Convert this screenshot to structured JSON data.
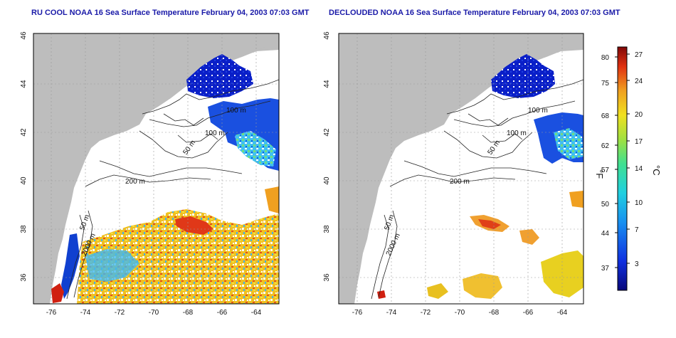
{
  "left_panel": {
    "title": "RU COOL NOAA 16 Sea Surface Temperature February 04, 2003 07:03 GMT",
    "contours": [
      "100 m",
      "100 m",
      "50 m",
      "200 m",
      "50 m",
      "2000 m"
    ]
  },
  "right_panel": {
    "title": "DECLOUDED NOAA 16 Sea Surface Temperature February 04, 2003 07:03 GMT",
    "contours": [
      "100 m",
      "100 m",
      "50 m",
      "200 m",
      "50 m",
      "2000 m"
    ]
  },
  "axes": {
    "x_ticks": [
      "-76",
      "-74",
      "-72",
      "-70",
      "-68",
      "-66",
      "-64"
    ],
    "y_ticks": [
      "36",
      "38",
      "40",
      "42",
      "44",
      "46"
    ]
  },
  "colorbar": {
    "f_label": "°F",
    "c_label": "°C",
    "f_ticks": [
      "80",
      "75",
      "68",
      "62",
      "57",
      "50",
      "44",
      "37"
    ],
    "c_ticks": [
      "27",
      "24",
      "20",
      "17",
      "14",
      "10",
      "7",
      "3"
    ]
  },
  "colors": {
    "land": "#bdbdbd",
    "title": "#1a1aa8",
    "cold": "#0a1fc8",
    "warm": "#e8c020",
    "hot": "#d02010"
  }
}
